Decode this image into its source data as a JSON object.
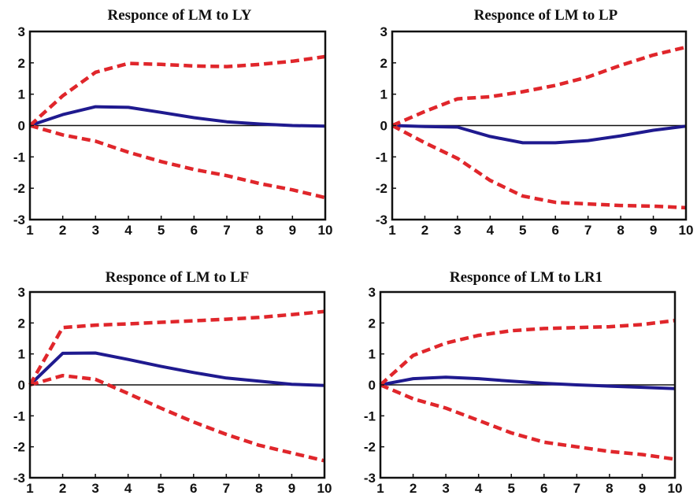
{
  "colors": {
    "response": "#1f1a8f",
    "confidence_band": "#e0262b",
    "axis": "#111111",
    "background": "#ffffff"
  },
  "chart_data": [
    {
      "type": "line",
      "title": "Responce of LM to LY",
      "x": [
        1,
        2,
        3,
        4,
        5,
        6,
        7,
        8,
        9,
        10
      ],
      "xlim": [
        1,
        10
      ],
      "ylim": [
        -3,
        3
      ],
      "yticks": [
        3,
        2,
        1,
        0,
        -1,
        -2,
        -3
      ],
      "xticks": [
        1,
        2,
        3,
        4,
        5,
        6,
        7,
        8,
        9,
        10
      ],
      "zero_line": true,
      "grid": false,
      "series": [
        {
          "role": "response",
          "style": "solid",
          "values": [
            0,
            0.35,
            0.6,
            0.58,
            0.42,
            0.25,
            0.12,
            0.05,
            0.0,
            -0.02
          ]
        },
        {
          "role": "upper",
          "style": "dashed",
          "values": [
            0,
            0.95,
            1.7,
            1.98,
            1.95,
            1.9,
            1.88,
            1.95,
            2.05,
            2.2
          ]
        },
        {
          "role": "lower",
          "style": "dashed",
          "values": [
            0,
            -0.3,
            -0.5,
            -0.85,
            -1.15,
            -1.4,
            -1.6,
            -1.85,
            -2.05,
            -2.3
          ]
        }
      ]
    },
    {
      "type": "line",
      "title": "Responce of LM to LP",
      "x": [
        1,
        2,
        3,
        4,
        5,
        6,
        7,
        8,
        9,
        10
      ],
      "xlim": [
        1,
        10
      ],
      "ylim": [
        -3,
        3
      ],
      "yticks": [
        3,
        2,
        1,
        0,
        -1,
        -2,
        -3
      ],
      "xticks": [
        1,
        2,
        3,
        4,
        5,
        6,
        7,
        8,
        9,
        10
      ],
      "zero_line": true,
      "grid": false,
      "series": [
        {
          "role": "response",
          "style": "solid",
          "values": [
            0,
            -0.03,
            -0.05,
            -0.35,
            -0.55,
            -0.55,
            -0.48,
            -0.33,
            -0.15,
            -0.02
          ]
        },
        {
          "role": "upper",
          "style": "dashed",
          "values": [
            0,
            0.45,
            0.85,
            0.92,
            1.08,
            1.28,
            1.55,
            1.92,
            2.25,
            2.5
          ]
        },
        {
          "role": "lower",
          "style": "dashed",
          "values": [
            0,
            -0.55,
            -1.05,
            -1.75,
            -2.25,
            -2.45,
            -2.5,
            -2.55,
            -2.57,
            -2.62
          ]
        }
      ]
    },
    {
      "type": "line",
      "title": "Responce of LM to LF",
      "x": [
        1,
        2,
        3,
        4,
        5,
        6,
        7,
        8,
        9,
        10
      ],
      "xlim": [
        1,
        10
      ],
      "ylim": [
        -3,
        3
      ],
      "yticks": [
        3,
        2,
        1,
        0,
        -1,
        -2,
        -3
      ],
      "xticks": [
        1,
        2,
        3,
        4,
        5,
        6,
        7,
        8,
        9,
        10
      ],
      "zero_line": true,
      "grid": false,
      "series": [
        {
          "role": "response",
          "style": "solid",
          "values": [
            0,
            1.02,
            1.03,
            0.82,
            0.6,
            0.4,
            0.22,
            0.12,
            0.02,
            -0.02
          ]
        },
        {
          "role": "upper",
          "style": "dashed",
          "values": [
            0,
            1.85,
            1.93,
            1.97,
            2.02,
            2.07,
            2.12,
            2.18,
            2.27,
            2.37
          ]
        },
        {
          "role": "lower",
          "style": "dashed",
          "values": [
            0,
            0.3,
            0.18,
            -0.28,
            -0.75,
            -1.2,
            -1.6,
            -1.95,
            -2.2,
            -2.45
          ]
        }
      ]
    },
    {
      "type": "line",
      "title": "Responce of LM to LR1",
      "x": [
        1,
        2,
        3,
        4,
        5,
        6,
        7,
        8,
        9,
        10
      ],
      "xlim": [
        1,
        10
      ],
      "ylim": [
        -3,
        3
      ],
      "yticks": [
        3,
        2,
        1,
        0,
        -1,
        -2,
        -3
      ],
      "xticks": [
        1,
        2,
        3,
        4,
        5,
        6,
        7,
        8,
        9,
        10
      ],
      "zero_line": true,
      "grid": false,
      "series": [
        {
          "role": "response",
          "style": "solid",
          "values": [
            0,
            0.2,
            0.25,
            0.2,
            0.12,
            0.05,
            0.0,
            -0.04,
            -0.08,
            -0.12
          ]
        },
        {
          "role": "upper",
          "style": "dashed",
          "values": [
            0,
            0.95,
            1.35,
            1.6,
            1.75,
            1.82,
            1.85,
            1.88,
            1.95,
            2.08
          ]
        },
        {
          "role": "lower",
          "style": "dashed",
          "values": [
            0,
            -0.45,
            -0.75,
            -1.15,
            -1.55,
            -1.85,
            -2.0,
            -2.15,
            -2.25,
            -2.4
          ]
        }
      ]
    }
  ]
}
